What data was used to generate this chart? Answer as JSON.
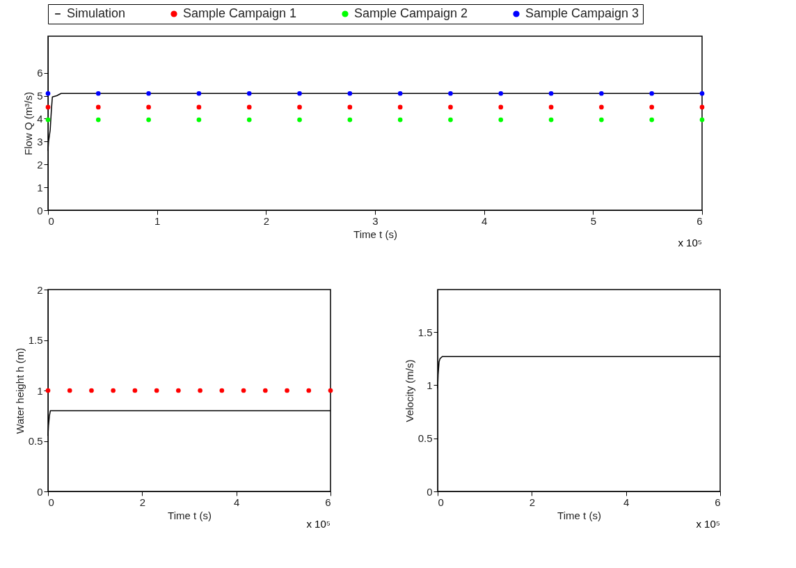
{
  "chart_data": [
    {
      "type": "line",
      "xlabel": "Time t (s)",
      "ylabel": "Flow Q (m³/s)",
      "xlim": [
        0,
        6
      ],
      "ylim": [
        0,
        7.6
      ],
      "xticks": [
        0,
        1,
        2,
        3,
        4,
        5,
        6
      ],
      "yticks": [
        0,
        1,
        2,
        3,
        4,
        5,
        6
      ],
      "annotations": [
        "x 10⁵"
      ],
      "legend": "top",
      "grid": false,
      "series": [
        {
          "name": "Simulation",
          "type": "line",
          "color": "#000000",
          "x": [
            0,
            0.005,
            0.02,
            0.03,
            0.04,
            0.08,
            0.12,
            6
          ],
          "values": [
            2.6,
            3.0,
            3.5,
            4.3,
            4.95,
            5.0,
            5.1,
            5.1
          ]
        },
        {
          "name": "Sample Campaign 1",
          "type": "scatter",
          "color": "#ff0000",
          "x": [
            0,
            0.4615,
            0.9231,
            1.3846,
            1.8462,
            2.3077,
            2.7692,
            3.2308,
            3.6923,
            4.1538,
            4.6154,
            5.0769,
            5.5385,
            6
          ],
          "values": [
            4.5,
            4.5,
            4.5,
            4.5,
            4.5,
            4.5,
            4.5,
            4.5,
            4.5,
            4.5,
            4.5,
            4.5,
            4.5,
            4.5
          ]
        },
        {
          "name": "Sample Campaign 2",
          "type": "scatter",
          "color": "#00ff00",
          "x": [
            0,
            0.4615,
            0.9231,
            1.3846,
            1.8462,
            2.3077,
            2.7692,
            3.2308,
            3.6923,
            4.1538,
            4.6154,
            5.0769,
            5.5385,
            6
          ],
          "values": [
            3.95,
            3.95,
            3.95,
            3.95,
            3.95,
            3.95,
            3.95,
            3.95,
            3.95,
            3.95,
            3.95,
            3.95,
            3.95,
            3.95
          ]
        },
        {
          "name": "Sample Campaign 3",
          "type": "scatter",
          "color": "#0000ff",
          "x": [
            0,
            0.4615,
            0.9231,
            1.3846,
            1.8462,
            2.3077,
            2.7692,
            3.2308,
            3.6923,
            4.1538,
            4.6154,
            5.0769,
            5.5385,
            6
          ],
          "values": [
            5.1,
            5.1,
            5.1,
            5.1,
            5.1,
            5.1,
            5.1,
            5.1,
            5.1,
            5.1,
            5.1,
            5.1,
            5.1,
            5.1
          ]
        }
      ]
    },
    {
      "type": "line",
      "xlabel": "Time t (s)",
      "ylabel": "Water height h (m)",
      "xlim": [
        0,
        6
      ],
      "ylim": [
        0,
        2
      ],
      "xticks": [
        0,
        2,
        4,
        6
      ],
      "yticks": [
        0,
        0.5,
        1,
        1.5,
        2
      ],
      "annotations": [
        "x 10⁵"
      ],
      "grid": false,
      "series": [
        {
          "type": "line",
          "color": "#000000",
          "x": [
            0,
            0.01,
            0.03,
            0.05,
            6
          ],
          "values": [
            0.55,
            0.65,
            0.75,
            0.8,
            0.8
          ]
        },
        {
          "type": "scatter",
          "color": "#ff0000",
          "x": [
            0,
            0.4615,
            0.9231,
            1.3846,
            1.8462,
            2.3077,
            2.7692,
            3.2308,
            3.6923,
            4.1538,
            4.6154,
            5.0769,
            5.5385,
            6
          ],
          "values": [
            1,
            1,
            1,
            1,
            1,
            1,
            1,
            1,
            1,
            1,
            1,
            1,
            1,
            1
          ]
        }
      ]
    },
    {
      "type": "line",
      "xlabel": "Time t (s)",
      "ylabel": "Velocity (m/s)",
      "xlim": [
        0,
        6
      ],
      "ylim": [
        0,
        1.9
      ],
      "xticks": [
        0,
        2,
        4,
        6
      ],
      "yticks": [
        0,
        0.5,
        1,
        1.5
      ],
      "annotations": [
        "x 10⁵"
      ],
      "grid": false,
      "series": [
        {
          "type": "line",
          "color": "#000000",
          "x": [
            0,
            0.01,
            0.03,
            0.05,
            0.1,
            6
          ],
          "values": [
            0.97,
            1.1,
            1.22,
            1.25,
            1.27,
            1.27
          ]
        }
      ]
    }
  ]
}
